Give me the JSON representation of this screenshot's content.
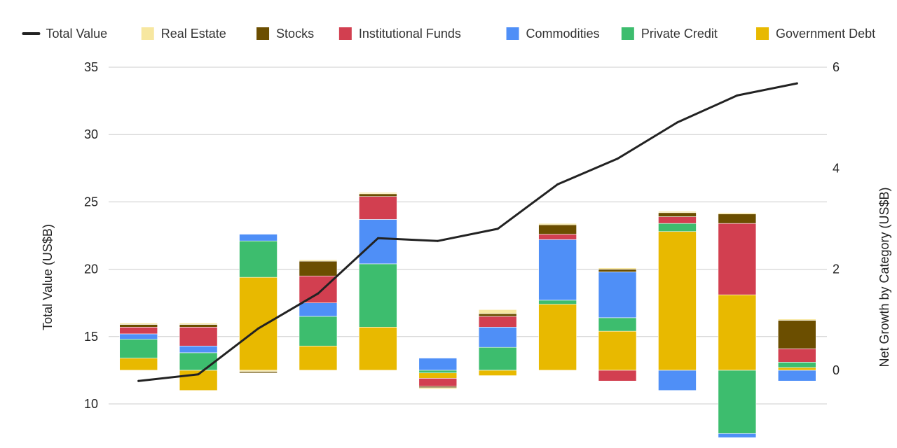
{
  "chart_data": {
    "type": "bar",
    "subtype": "stacked-waterfall-with-line",
    "title": "",
    "ylabel_left": "Total Value (US$B)",
    "ylabel_right": "Net Growth by Category (US$B)",
    "left_axis": {
      "min": 10,
      "max": 35,
      "ticks": [
        10,
        15,
        20,
        25,
        30,
        35
      ]
    },
    "right_axis": {
      "min": -1.3,
      "max": 6,
      "ticks": [
        0,
        2,
        4,
        6
      ]
    },
    "grid": true,
    "legend_position": "top",
    "legend": [
      {
        "name": "Total Value",
        "type": "line",
        "color": "#222222"
      },
      {
        "name": "Real Estate",
        "type": "bar",
        "color": "#f7e7a0"
      },
      {
        "name": "Stocks",
        "type": "bar",
        "color": "#6b4e00"
      },
      {
        "name": "Institutional Funds",
        "type": "bar",
        "color": "#d23f50"
      },
      {
        "name": "Commodities",
        "type": "bar",
        "color": "#4f8ff7"
      },
      {
        "name": "Private Credit",
        "type": "bar",
        "color": "#3dbd6e"
      },
      {
        "name": "Government Debt",
        "type": "bar",
        "color": "#e8b900"
      }
    ],
    "line": {
      "name": "Total Value",
      "values": [
        11.7,
        12.2,
        15.6,
        18.2,
        22.3,
        22.1,
        23.0,
        26.3,
        28.2,
        30.9,
        32.9,
        33.8
      ]
    },
    "bars": [
      {
        "base": 12.5,
        "segments": [
          {
            "series": "Government Debt",
            "value": 0.9
          },
          {
            "series": "Private Credit",
            "value": 1.4
          },
          {
            "series": "Commodities",
            "value": 0.4
          },
          {
            "series": "Institutional Funds",
            "value": 0.5
          },
          {
            "series": "Stocks",
            "value": 0.2
          },
          {
            "series": "Real Estate",
            "value": 0.1
          }
        ]
      },
      {
        "base": 12.5,
        "segments": [
          {
            "series": "Government Debt",
            "value": -1.5
          },
          {
            "series": "Private Credit",
            "value": 1.3
          },
          {
            "series": "Commodities",
            "value": 0.5
          },
          {
            "series": "Institutional Funds",
            "value": 1.4
          },
          {
            "series": "Stocks",
            "value": 0.2
          },
          {
            "series": "Real Estate",
            "value": 0.1
          }
        ]
      },
      {
        "base": 12.5,
        "segments": [
          {
            "series": "Real Estate",
            "value": -0.1
          },
          {
            "series": "Stocks",
            "value": -0.1
          },
          {
            "series": "Government Debt",
            "value": 6.9
          },
          {
            "series": "Private Credit",
            "value": 2.7
          },
          {
            "series": "Commodities",
            "value": 0.5
          }
        ]
      },
      {
        "base": 12.5,
        "segments": [
          {
            "series": "Government Debt",
            "value": 1.8
          },
          {
            "series": "Private Credit",
            "value": 2.2
          },
          {
            "series": "Commodities",
            "value": 1.0
          },
          {
            "series": "Institutional Funds",
            "value": 2.0
          },
          {
            "series": "Stocks",
            "value": 1.1
          },
          {
            "series": "Real Estate",
            "value": 0.1
          }
        ]
      },
      {
        "base": 12.5,
        "segments": [
          {
            "series": "Government Debt",
            "value": 3.2
          },
          {
            "series": "Private Credit",
            "value": 4.7
          },
          {
            "series": "Commodities",
            "value": 3.3
          },
          {
            "series": "Institutional Funds",
            "value": 1.7
          },
          {
            "series": "Stocks",
            "value": 0.2
          },
          {
            "series": "Real Estate",
            "value": 0.1
          }
        ]
      },
      {
        "base": 12.5,
        "segments": [
          {
            "series": "Private Credit",
            "value": -0.2
          },
          {
            "series": "Government Debt",
            "value": -0.4
          },
          {
            "series": "Institutional Funds",
            "value": -0.6
          },
          {
            "series": "Stocks",
            "value": -0.1
          },
          {
            "series": "Real Estate",
            "value": -0.1
          },
          {
            "series": "Commodities",
            "value": 0.9
          }
        ]
      },
      {
        "base": 12.5,
        "segments": [
          {
            "series": "Government Debt",
            "value": -0.4
          },
          {
            "series": "Private Credit",
            "value": 1.7
          },
          {
            "series": "Commodities",
            "value": 1.5
          },
          {
            "series": "Institutional Funds",
            "value": 0.8
          },
          {
            "series": "Stocks",
            "value": 0.2
          },
          {
            "series": "Real Estate",
            "value": 0.3
          }
        ]
      },
      {
        "base": 12.5,
        "segments": [
          {
            "series": "Government Debt",
            "value": 4.9
          },
          {
            "series": "Private Credit",
            "value": 0.3
          },
          {
            "series": "Commodities",
            "value": 4.5
          },
          {
            "series": "Institutional Funds",
            "value": 0.4
          },
          {
            "series": "Stocks",
            "value": 0.7
          },
          {
            "series": "Real Estate",
            "value": 0.1
          }
        ]
      },
      {
        "base": 12.5,
        "segments": [
          {
            "series": "Institutional Funds",
            "value": -0.8
          },
          {
            "series": "Government Debt",
            "value": 2.9
          },
          {
            "series": "Private Credit",
            "value": 1.0
          },
          {
            "series": "Commodities",
            "value": 3.4
          },
          {
            "series": "Stocks",
            "value": 0.2
          },
          {
            "series": "Real Estate",
            "value": 0.1
          }
        ]
      },
      {
        "base": 12.5,
        "segments": [
          {
            "series": "Commodities",
            "value": -1.5
          },
          {
            "series": "Government Debt",
            "value": 10.3
          },
          {
            "series": "Private Credit",
            "value": 0.6
          },
          {
            "series": "Institutional Funds",
            "value": 0.5
          },
          {
            "series": "Stocks",
            "value": 0.3
          },
          {
            "series": "Real Estate",
            "value": 0.1
          }
        ]
      },
      {
        "base": 12.5,
        "segments": [
          {
            "series": "Private Credit",
            "value": -4.7
          },
          {
            "series": "Commodities",
            "value": -0.3
          },
          {
            "series": "Government Debt",
            "value": 5.6
          },
          {
            "series": "Institutional Funds",
            "value": 5.3
          },
          {
            "series": "Stocks",
            "value": 0.7
          },
          {
            "series": "Real Estate",
            "value": 0.1
          }
        ]
      },
      {
        "base": 12.5,
        "segments": [
          {
            "series": "Commodities",
            "value": -0.8
          },
          {
            "series": "Government Debt",
            "value": 0.2
          },
          {
            "series": "Private Credit",
            "value": 0.4
          },
          {
            "series": "Institutional Funds",
            "value": 1.0
          },
          {
            "series": "Stocks",
            "value": 2.1
          },
          {
            "series": "Real Estate",
            "value": 0.1
          }
        ]
      }
    ]
  }
}
